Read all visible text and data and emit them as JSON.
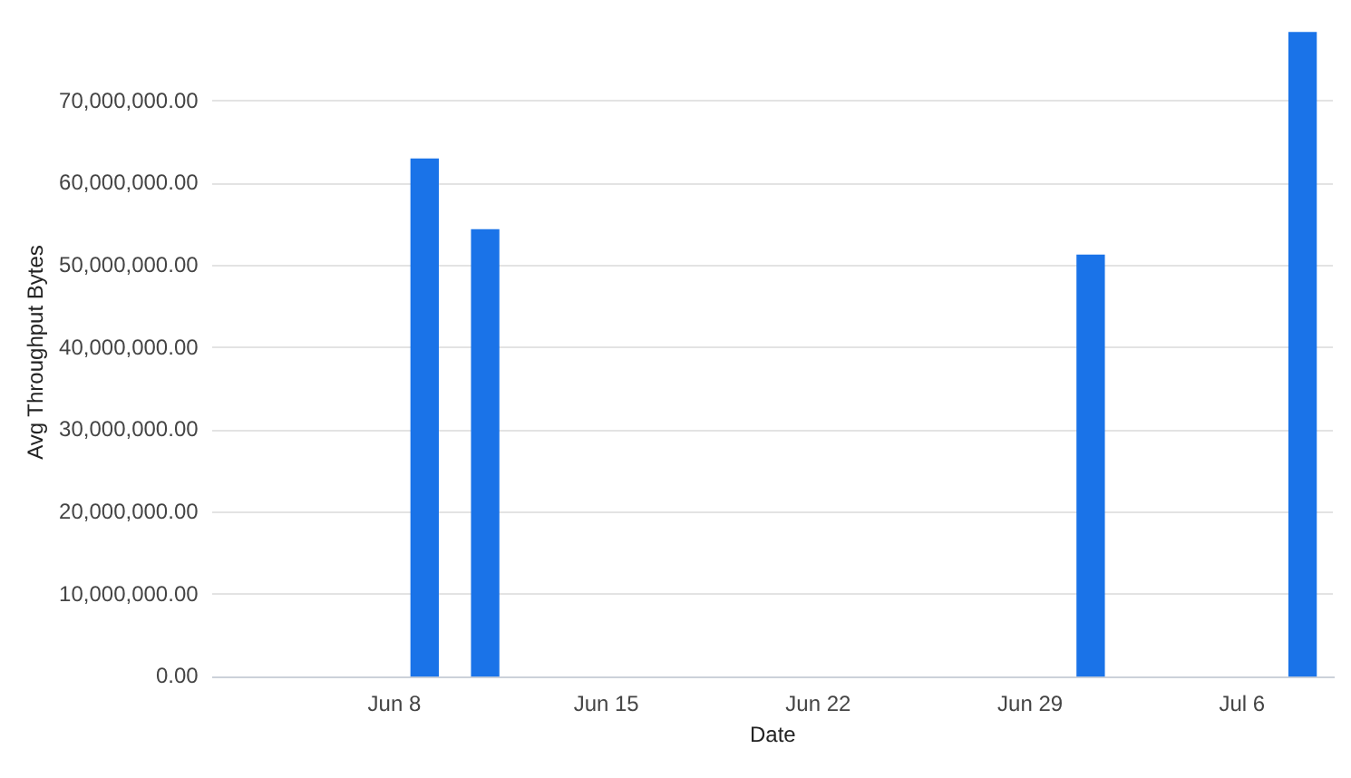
{
  "chart_data": {
    "type": "bar",
    "xlabel": "Date",
    "ylabel": "Avg Throughput Bytes",
    "x": [
      "--06-09",
      "--06-11",
      "--07-01",
      "--07-08"
    ],
    "values": [
      63000000,
      54400000,
      51300000,
      78400000
    ],
    "color": "#1a73e8",
    "xlim": [
      "--06-02",
      "--07-09"
    ],
    "xticks": [
      {
        "value": "--06-08",
        "label": "Jun 8"
      },
      {
        "value": "--06-15",
        "label": "Jun 15"
      },
      {
        "value": "--06-22",
        "label": "Jun 22"
      },
      {
        "value": "--06-29",
        "label": "Jun 29"
      },
      {
        "value": "--07-06",
        "label": "Jul 6"
      }
    ],
    "ylim": [
      0,
      79000000
    ],
    "yticks": [
      {
        "value": 0,
        "label": "0.00"
      },
      {
        "value": 10000000,
        "label": "10,000,000.00"
      },
      {
        "value": 20000000,
        "label": "20,000,000.00"
      },
      {
        "value": 30000000,
        "label": "30,000,000.00"
      },
      {
        "value": 40000000,
        "label": "40,000,000.00"
      },
      {
        "value": 50000000,
        "label": "50,000,000.00"
      },
      {
        "value": 60000000,
        "label": "60,000,000.00"
      },
      {
        "value": 70000000,
        "label": "70,000,000.00"
      }
    ],
    "grid": "y"
  }
}
